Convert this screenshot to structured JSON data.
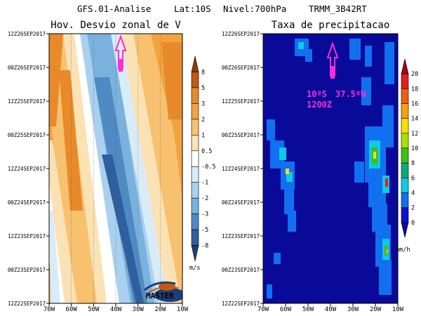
{
  "header": {
    "model": "GFS.01-Analise",
    "lat": "Lat:10S",
    "level": "Nivel:700hPa",
    "product": "TRMM_3B42RT"
  },
  "colors": {
    "marker": "#ff2bd6",
    "frame": "#000000"
  },
  "chart_data": [
    {
      "type": "heatmap",
      "title": "Hov. Desvio zonal de V",
      "x_ticks": [
        "70W",
        "60W",
        "50W",
        "40W",
        "30W",
        "20W",
        "10W"
      ],
      "x_range": [
        -70,
        -10
      ],
      "y_ticks": [
        "12Z22SEP2017",
        "00Z23SEP2017",
        "12Z23SEP2017",
        "00Z24SEP2017",
        "12Z24SEP2017",
        "00Z25SEP2017",
        "12Z25SEP2017",
        "00Z26SEP2017",
        "12Z26SEP2017"
      ],
      "colorbar": {
        "labels": [
          "8",
          "5",
          "3",
          "2",
          "1",
          "0.5",
          "-0.5",
          "-1",
          "-2",
          "-3",
          "-5",
          "-8"
        ],
        "unit": "m/s",
        "colors": [
          "#8c3a0c",
          "#c25a10",
          "#e8892a",
          "#f2a340",
          "#f7c170",
          "#fbe2b4",
          "#ffffff",
          "#d8ebf7",
          "#a9d0ee",
          "#7ab2dd",
          "#4f8ac4",
          "#2f5f9e",
          "#1d3f78"
        ]
      },
      "annotation": "MASTER"
    },
    {
      "type": "heatmap",
      "title": "Taxa de precipitacao",
      "x_ticks": [
        "70W",
        "60W",
        "50W",
        "40W",
        "30W",
        "20W",
        "10W"
      ],
      "x_range": [
        -70,
        -10
      ],
      "y_ticks": [
        "12Z22SEP2017",
        "00Z23SEP2017",
        "12Z23SEP2017",
        "00Z24SEP2017",
        "12Z24SEP2017",
        "00Z25SEP2017",
        "12Z25SEP2017",
        "00Z26SEP2017",
        "12Z26SEP2017"
      ],
      "colorbar": {
        "labels": [
          "20",
          "18",
          "16",
          "14",
          "12",
          "10",
          "8",
          "6",
          "4",
          "2",
          "0"
        ],
        "unit": "mm/h",
        "colors": [
          "#a0002a",
          "#e0201a",
          "#f06010",
          "#f8a010",
          "#f8e000",
          "#a8e000",
          "#40c010",
          "#10a878",
          "#10c8e8",
          "#1070f0",
          "#1010d0",
          "#0a0a9a"
        ]
      },
      "marker": {
        "lat": "10ºS",
        "lon": "37.5ºW",
        "time": "1200Z"
      }
    }
  ]
}
